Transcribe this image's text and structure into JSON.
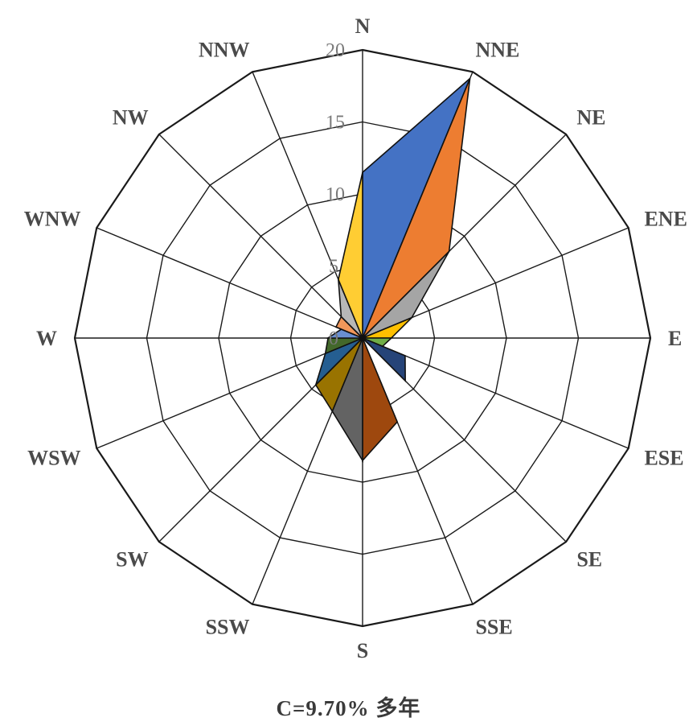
{
  "chart_data": {
    "type": "radar",
    "directions": [
      "N",
      "NNE",
      "NE",
      "ENE",
      "E",
      "ESE",
      "SE",
      "SSE",
      "S",
      "SSW",
      "SW",
      "WSW",
      "W",
      "WNW",
      "NW",
      "NNW"
    ],
    "radial_ticks": [
      "0",
      "5",
      "10",
      "15",
      "20"
    ],
    "rmax": 20,
    "grid": true,
    "series": [
      {
        "color": "#4472C4",
        "values": [
          11.5,
          19.5,
          0,
          0,
          0,
          0,
          0,
          0,
          0,
          0,
          0,
          0,
          0,
          0,
          0,
          0
        ]
      },
      {
        "color": "#ED7D31",
        "values": [
          0,
          19.5,
          8.5,
          0,
          0,
          0,
          0,
          0,
          0,
          0,
          0,
          0,
          0,
          0,
          0,
          0
        ]
      },
      {
        "color": "#A5A5A5",
        "values": [
          0,
          0,
          8.5,
          3.7,
          0,
          0,
          0,
          0,
          0,
          0,
          0,
          0,
          0,
          0,
          0,
          0
        ]
      },
      {
        "color": "#FFC000",
        "values": [
          0,
          0,
          0,
          3.7,
          2.0,
          0,
          0,
          0,
          0,
          0,
          0,
          0,
          0,
          0,
          0,
          0
        ]
      },
      {
        "color": "#70AD47",
        "values": [
          0,
          0,
          0,
          0,
          2.0,
          1.5,
          0,
          0,
          0,
          0,
          0,
          0,
          0,
          0,
          0,
          0
        ]
      },
      {
        "color": "#264478",
        "values": [
          0,
          0,
          0,
          0,
          0,
          3.2,
          4.2,
          0,
          0,
          0,
          0,
          0,
          0,
          0,
          0,
          0
        ]
      },
      {
        "color": "#9E480E",
        "values": [
          0,
          0,
          0,
          0,
          0,
          0,
          0,
          6.3,
          8.5,
          0,
          0,
          0,
          0,
          0,
          0,
          0
        ]
      },
      {
        "color": "#636363",
        "values": [
          0,
          0,
          0,
          0,
          0,
          0,
          0,
          0,
          8.5,
          5.5,
          0,
          0,
          0,
          0,
          0,
          0
        ]
      },
      {
        "color": "#997300",
        "values": [
          0,
          0,
          0,
          0,
          0,
          0,
          0,
          0,
          0,
          5.5,
          4.6,
          0,
          0,
          0,
          0,
          0
        ]
      },
      {
        "color": "#255E91",
        "values": [
          0,
          0,
          0,
          0,
          0,
          0,
          0,
          0,
          0,
          0,
          4.6,
          2.8,
          0,
          0,
          0,
          0
        ]
      },
      {
        "color": "#43682B",
        "values": [
          0,
          0,
          0,
          0,
          0,
          0,
          0,
          0,
          0,
          0,
          0,
          2.8,
          2.4,
          0,
          0,
          0
        ]
      },
      {
        "color": "#698ED0",
        "values": [
          0,
          0,
          0,
          0,
          0,
          0,
          0,
          0,
          0,
          0,
          0,
          0,
          2.4,
          1.6,
          0,
          0
        ]
      },
      {
        "color": "#F1975A",
        "values": [
          0,
          0,
          0,
          0,
          0,
          0,
          0,
          0,
          0,
          0,
          0,
          0,
          0,
          2.0,
          2.1,
          0
        ]
      },
      {
        "color": "#B7B7B7",
        "values": [
          0,
          0,
          0,
          0,
          0,
          0,
          0,
          0,
          0,
          0,
          0,
          0,
          0,
          0,
          2.1,
          4.4
        ]
      },
      {
        "color": "#FFCD33",
        "values": [
          11.5,
          0,
          0,
          0,
          0,
          0,
          0,
          0,
          0,
          0,
          0,
          0,
          0,
          0,
          0,
          4.4
        ]
      }
    ],
    "caption": "C=9.70% 多年"
  }
}
